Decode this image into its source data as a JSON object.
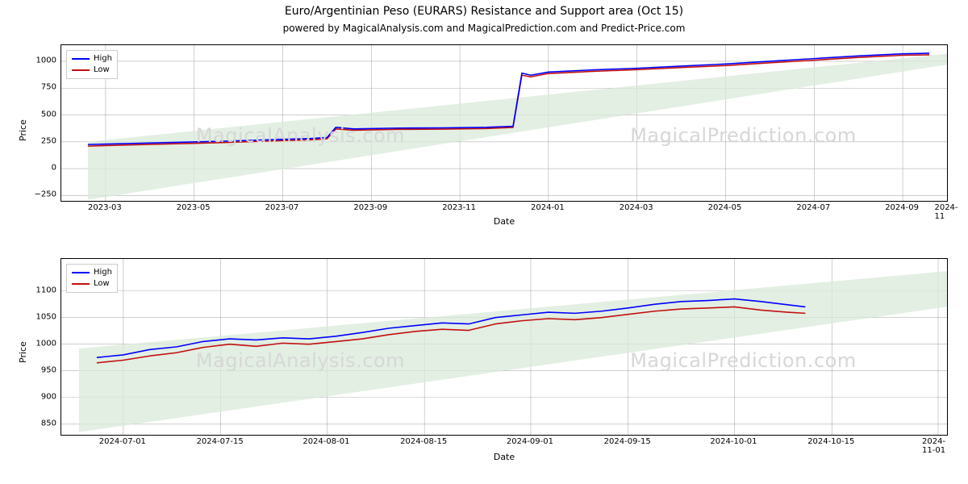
{
  "title": "Euro/Argentinian Peso (EURARS) Resistance and Support area (Oct 15)",
  "title_fontsize": 14,
  "subtitle": "powered by MagicalAnalysis.com and MagicalPrediction.com and Predict-Price.com",
  "subtitle_fontsize": 12,
  "background_color": "#ffffff",
  "border_color": "#000000",
  "grid_color": "#b0b0b0",
  "grid_width": 0.6,
  "watermark_color": "#d7d7d7",
  "watermark_fontsize": 24,
  "legend": {
    "items": [
      {
        "label": "High",
        "color": "#0000ff"
      },
      {
        "label": "Low",
        "color": "#c20f0f"
      }
    ],
    "border_color": "#cccccc",
    "fontsize": 10
  },
  "top_chart": {
    "type": "line",
    "xlabel": "Date",
    "ylabel": "Price",
    "label_fontsize": 11,
    "tick_fontsize": 10,
    "line_width": 1.6,
    "ylim": [
      -300,
      1150
    ],
    "xlim": [
      0,
      100
    ],
    "yticks": [
      {
        "v": -250,
        "label": "−250"
      },
      {
        "v": 0,
        "label": "0"
      },
      {
        "v": 250,
        "label": "250"
      },
      {
        "v": 500,
        "label": "500"
      },
      {
        "v": 750,
        "label": "750"
      },
      {
        "v": 1000,
        "label": "1000"
      }
    ],
    "xticks": [
      {
        "v": 5,
        "label": "2023-03"
      },
      {
        "v": 15,
        "label": "2023-05"
      },
      {
        "v": 25,
        "label": "2023-07"
      },
      {
        "v": 35,
        "label": "2023-09"
      },
      {
        "v": 45,
        "label": "2023-11"
      },
      {
        "v": 55,
        "label": "2024-01"
      },
      {
        "v": 65,
        "label": "2024-03"
      },
      {
        "v": 75,
        "label": "2024-05"
      },
      {
        "v": 85,
        "label": "2024-07"
      },
      {
        "v": 95,
        "label": "2024-09"
      },
      {
        "v": 105,
        "label": "2024-11"
      }
    ],
    "wedge": {
      "fill": "#d9ead9",
      "opacity": 0.75,
      "points_top": [
        {
          "x": 3,
          "y": 250
        },
        {
          "x": 107,
          "y": 1130
        }
      ],
      "points_bottom": [
        {
          "x": 3,
          "y": -290
        },
        {
          "x": 107,
          "y": 1060
        }
      ]
    },
    "series_high": {
      "color": "#0000ff",
      "pts": [
        {
          "x": 3,
          "y": 225
        },
        {
          "x": 8,
          "y": 235
        },
        {
          "x": 13,
          "y": 245
        },
        {
          "x": 18,
          "y": 255
        },
        {
          "x": 23,
          "y": 268
        },
        {
          "x": 28,
          "y": 280
        },
        {
          "x": 30,
          "y": 290
        },
        {
          "x": 31,
          "y": 385
        },
        {
          "x": 33,
          "y": 370
        },
        {
          "x": 38,
          "y": 378
        },
        {
          "x": 43,
          "y": 380
        },
        {
          "x": 48,
          "y": 385
        },
        {
          "x": 51,
          "y": 395
        },
        {
          "x": 52,
          "y": 890
        },
        {
          "x": 53,
          "y": 870
        },
        {
          "x": 55,
          "y": 900
        },
        {
          "x": 60,
          "y": 920
        },
        {
          "x": 65,
          "y": 935
        },
        {
          "x": 70,
          "y": 955
        },
        {
          "x": 75,
          "y": 975
        },
        {
          "x": 80,
          "y": 1000
        },
        {
          "x": 85,
          "y": 1025
        },
        {
          "x": 90,
          "y": 1050
        },
        {
          "x": 95,
          "y": 1070
        },
        {
          "x": 98,
          "y": 1075
        }
      ]
    },
    "series_low": {
      "color": "#c20f0f",
      "pts": [
        {
          "x": 3,
          "y": 210
        },
        {
          "x": 8,
          "y": 222
        },
        {
          "x": 13,
          "y": 232
        },
        {
          "x": 18,
          "y": 242
        },
        {
          "x": 23,
          "y": 256
        },
        {
          "x": 28,
          "y": 268
        },
        {
          "x": 30,
          "y": 278
        },
        {
          "x": 31,
          "y": 370
        },
        {
          "x": 33,
          "y": 358
        },
        {
          "x": 38,
          "y": 366
        },
        {
          "x": 43,
          "y": 368
        },
        {
          "x": 48,
          "y": 374
        },
        {
          "x": 51,
          "y": 384
        },
        {
          "x": 52,
          "y": 870
        },
        {
          "x": 53,
          "y": 855
        },
        {
          "x": 55,
          "y": 886
        },
        {
          "x": 60,
          "y": 906
        },
        {
          "x": 65,
          "y": 922
        },
        {
          "x": 70,
          "y": 942
        },
        {
          "x": 75,
          "y": 960
        },
        {
          "x": 80,
          "y": 986
        },
        {
          "x": 85,
          "y": 1010
        },
        {
          "x": 90,
          "y": 1036
        },
        {
          "x": 95,
          "y": 1056
        },
        {
          "x": 98,
          "y": 1060
        }
      ]
    },
    "watermark_left": "MagicalAnalysis.com",
    "watermark_right": "MagicalPrediction.com"
  },
  "bottom_chart": {
    "type": "line",
    "xlabel": "Date",
    "ylabel": "Price",
    "label_fontsize": 11,
    "tick_fontsize": 10,
    "line_width": 1.6,
    "ylim": [
      830,
      1160
    ],
    "xlim": [
      0,
      100
    ],
    "yticks": [
      {
        "v": 850,
        "label": "850"
      },
      {
        "v": 900,
        "label": "900"
      },
      {
        "v": 950,
        "label": "950"
      },
      {
        "v": 1000,
        "label": "1000"
      },
      {
        "v": 1050,
        "label": "1050"
      },
      {
        "v": 1100,
        "label": "1100"
      }
    ],
    "xticks": [
      {
        "v": 7,
        "label": "2024-07-01"
      },
      {
        "v": 18,
        "label": "2024-07-15"
      },
      {
        "v": 30,
        "label": "2024-08-01"
      },
      {
        "v": 41,
        "label": "2024-08-15"
      },
      {
        "v": 53,
        "label": "2024-09-01"
      },
      {
        "v": 64,
        "label": "2024-09-15"
      },
      {
        "v": 76,
        "label": "2024-10-01"
      },
      {
        "v": 87,
        "label": "2024-10-15"
      },
      {
        "v": 99,
        "label": "2024-11-01"
      }
    ],
    "wedge": {
      "fill": "#d9ead9",
      "opacity": 0.75,
      "points_top": [
        {
          "x": 2,
          "y": 992
        },
        {
          "x": 102,
          "y": 1140
        }
      ],
      "points_bottom": [
        {
          "x": 2,
          "y": 835
        },
        {
          "x": 102,
          "y": 1075
        }
      ]
    },
    "series_high": {
      "color": "#0000ff",
      "pts": [
        {
          "x": 4,
          "y": 975
        },
        {
          "x": 7,
          "y": 980
        },
        {
          "x": 10,
          "y": 990
        },
        {
          "x": 13,
          "y": 995
        },
        {
          "x": 16,
          "y": 1005
        },
        {
          "x": 19,
          "y": 1010
        },
        {
          "x": 22,
          "y": 1008
        },
        {
          "x": 25,
          "y": 1012
        },
        {
          "x": 28,
          "y": 1010
        },
        {
          "x": 31,
          "y": 1015
        },
        {
          "x": 34,
          "y": 1022
        },
        {
          "x": 37,
          "y": 1030
        },
        {
          "x": 40,
          "y": 1035
        },
        {
          "x": 43,
          "y": 1040
        },
        {
          "x": 46,
          "y": 1038
        },
        {
          "x": 49,
          "y": 1050
        },
        {
          "x": 52,
          "y": 1055
        },
        {
          "x": 55,
          "y": 1060
        },
        {
          "x": 58,
          "y": 1058
        },
        {
          "x": 61,
          "y": 1062
        },
        {
          "x": 64,
          "y": 1068
        },
        {
          "x": 67,
          "y": 1075
        },
        {
          "x": 70,
          "y": 1080
        },
        {
          "x": 73,
          "y": 1082
        },
        {
          "x": 76,
          "y": 1085
        },
        {
          "x": 79,
          "y": 1080
        },
        {
          "x": 82,
          "y": 1074
        },
        {
          "x": 84,
          "y": 1070
        }
      ]
    },
    "series_low": {
      "color": "#c20f0f",
      "pts": [
        {
          "x": 4,
          "y": 965
        },
        {
          "x": 7,
          "y": 970
        },
        {
          "x": 10,
          "y": 978
        },
        {
          "x": 13,
          "y": 984
        },
        {
          "x": 16,
          "y": 994
        },
        {
          "x": 19,
          "y": 1000
        },
        {
          "x": 22,
          "y": 996
        },
        {
          "x": 25,
          "y": 1002
        },
        {
          "x": 28,
          "y": 1000
        },
        {
          "x": 31,
          "y": 1005
        },
        {
          "x": 34,
          "y": 1010
        },
        {
          "x": 37,
          "y": 1018
        },
        {
          "x": 40,
          "y": 1024
        },
        {
          "x": 43,
          "y": 1028
        },
        {
          "x": 46,
          "y": 1026
        },
        {
          "x": 49,
          "y": 1038
        },
        {
          "x": 52,
          "y": 1044
        },
        {
          "x": 55,
          "y": 1048
        },
        {
          "x": 58,
          "y": 1046
        },
        {
          "x": 61,
          "y": 1050
        },
        {
          "x": 64,
          "y": 1056
        },
        {
          "x": 67,
          "y": 1062
        },
        {
          "x": 70,
          "y": 1066
        },
        {
          "x": 73,
          "y": 1068
        },
        {
          "x": 76,
          "y": 1070
        },
        {
          "x": 79,
          "y": 1064
        },
        {
          "x": 82,
          "y": 1060
        },
        {
          "x": 84,
          "y": 1058
        }
      ]
    },
    "watermark_left": "MagicalAnalysis.com",
    "watermark_right": "MagicalPrediction.com"
  }
}
